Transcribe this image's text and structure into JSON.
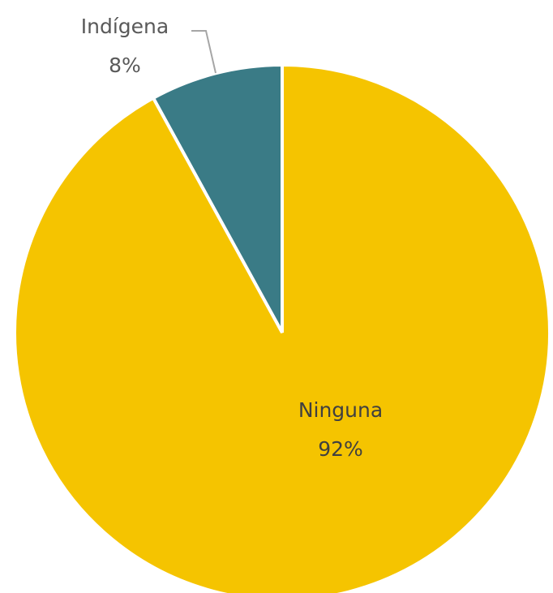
{
  "chart_data": {
    "type": "pie",
    "title": "",
    "start_angle_deg": 0,
    "direction": "counterclockwise",
    "slices": [
      {
        "name": "Indígena",
        "value": 8,
        "percent_label": "8%",
        "color": "#3a7b86",
        "label_color": "#595959",
        "label_position": "outside-top-left"
      },
      {
        "name": "Ninguna",
        "value": 92,
        "percent_label": "92%",
        "color": "#f5c400",
        "label_color": "#404040",
        "label_position": "inside"
      }
    ],
    "legend": "none"
  }
}
